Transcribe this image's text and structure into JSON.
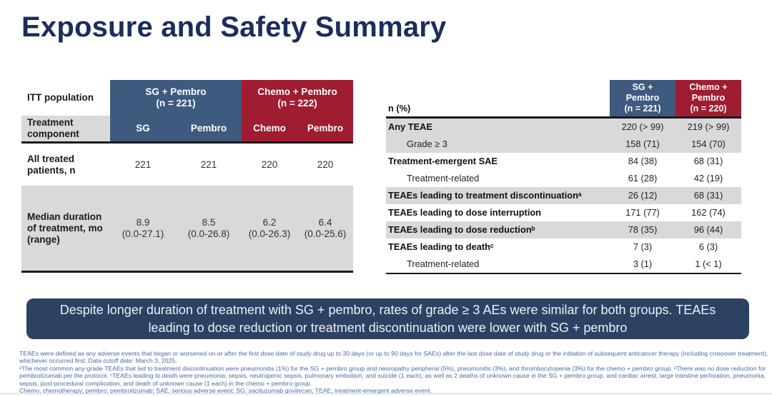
{
  "title": "Exposure and Safety Summary",
  "colors": {
    "accent_blue": "#3e5a7e",
    "accent_red": "#9f1c31",
    "row_gray": "#d9d9d9",
    "title_navy": "#1b2d5b",
    "callout_navy": "#2d4163",
    "footnote_blue": "#4a69a5"
  },
  "left_table": {
    "corner_label": "ITT population",
    "component_label": "Treatment component",
    "groups": [
      {
        "header": "SG + Pembro\n(n = 221)"
      },
      {
        "header": "Chemo + Pembro\n(n = 222)"
      }
    ],
    "subcolumns": [
      "SG",
      "Pembro",
      "Chemo",
      "Pembro"
    ],
    "rows": [
      {
        "label": "All treated patients, n",
        "values": [
          "221",
          "221",
          "220",
          "220"
        ]
      },
      {
        "label": "Median duration of treatment, mo (range)",
        "values": [
          "8.9\n(0.0-27.1)",
          "8.5\n(0.0-26.8)",
          "6.2\n(0.0-26.3)",
          "6.4\n(0.0-25.6)"
        ]
      }
    ]
  },
  "right_table": {
    "corner_label": "n (%)",
    "groups": [
      {
        "header": "SG +\nPembro\n(n = 221)"
      },
      {
        "header": "Chemo +\nPembro\n(n = 220)"
      }
    ],
    "rows": [
      {
        "label": "Any TEAE",
        "values": [
          "220 (> 99)",
          "219 (> 99)"
        ]
      },
      {
        "label": "Grade ≥ 3",
        "values": [
          "158 (71)",
          "154 (70)"
        ]
      },
      {
        "label": "Treatment-emergent SAE",
        "values": [
          "84 (38)",
          "68 (31)"
        ]
      },
      {
        "label": "Treatment-related",
        "values": [
          "61 (28)",
          "42 (19)"
        ]
      },
      {
        "label": "TEAEs leading to treatment discontinuationᵃ",
        "values": [
          "26 (12)",
          "68 (31)"
        ]
      },
      {
        "label": "TEAEs leading to dose interruption",
        "values": [
          "171 (77)",
          "162 (74)"
        ]
      },
      {
        "label": "TEAEs leading to dose reductionᵇ",
        "values": [
          "78 (35)",
          "96 (44)"
        ]
      },
      {
        "label": "TEAEs leading to deathᶜ",
        "values": [
          "7 (3)",
          "6 (3)"
        ]
      },
      {
        "label": "Treatment-related",
        "values": [
          "3 (1)",
          "1 (< 1)"
        ]
      }
    ]
  },
  "callout": "Despite longer duration of treatment with SG + pembro, rates of grade ≥ 3 AEs were similar for both groups. TEAEs leading to dose reduction or treatment discontinuation were lower with SG + pembro",
  "footnotes": [
    "TEAEs were defined as any adverse events that began or worsened on or after the first dose date of study drug up to 30 days (or up to 90 days for SAEs) after the last dose date of study drug or the initiation of subsequent anticancer therapy (including crossover treatment),",
    "whichever occurred first. Data cutoff date: March 3, 2025.",
    "ᵃThe most common any-grade TEAEs that led to treatment discontinuation were pneumonitis (1%) for the SG + pembro group and neuropathy peripheral (5%), pneumonitis (3%), and thrombocytopenia (3%) for the chemo + pembro group. ᵇThere was no dose reduction for",
    "pembrolizumab per the protocol. ᶜTEAEs leading to death were pneumonia, sepsis, neutropenic sepsis, pulmonary embolism, and suicide (1 each), as well as 2 deaths of unknown cause in the SG + pembro group, and cardiac arrest, large intestine perforation, pneumonia,",
    "sepsis, post-procedural complication, and death of unknown cause (1 each) in the chemo + pembro group.",
    "Chemo, chemotherapy; pembro, pembrolizumab; SAE, serious adverse event; SG, sacituzumab govitecan; TEAE, treatment-emergent adverse event."
  ]
}
